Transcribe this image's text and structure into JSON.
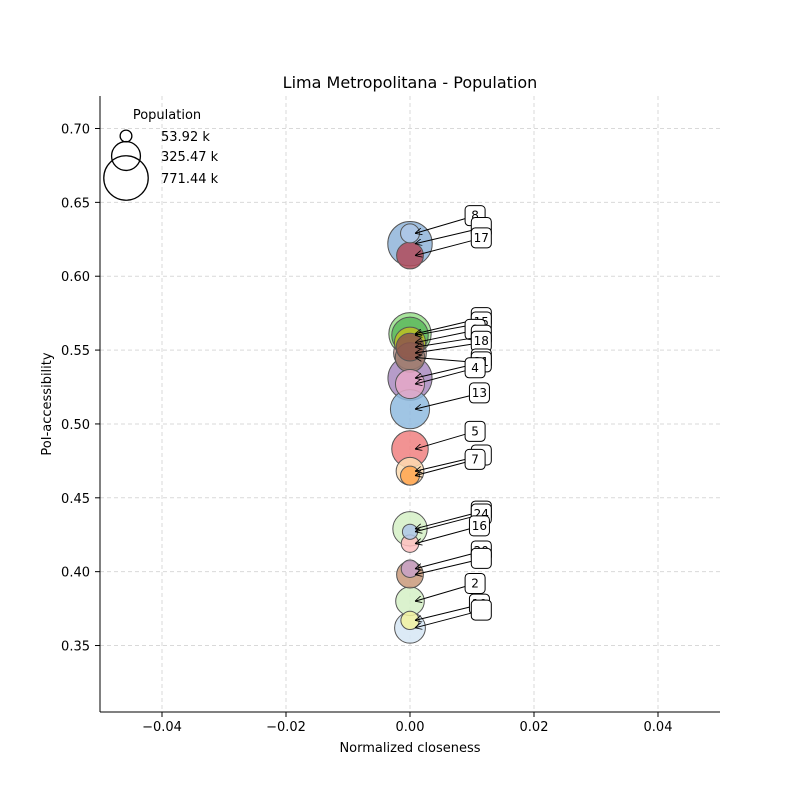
{
  "chart_data": {
    "type": "scatter",
    "title": "Lima Metropolitana - Population",
    "xlabel": "Normalized closeness",
    "ylabel": "PoI-accessibility",
    "xlim": [
      -0.05,
      0.05
    ],
    "ylim": [
      0.305,
      0.722
    ],
    "xticks": [
      -0.04,
      -0.02,
      0.0,
      0.02,
      0.04
    ],
    "xtick_labels": [
      "−0.04",
      "−0.02",
      "0.00",
      "0.02",
      "0.04"
    ],
    "yticks": [
      0.35,
      0.4,
      0.45,
      0.5,
      0.55,
      0.6,
      0.65,
      0.7
    ],
    "ytick_labels": [
      "0.35",
      "0.40",
      "0.45",
      "0.50",
      "0.55",
      "0.60",
      "0.65",
      "0.70"
    ],
    "grid": true,
    "legend": {
      "title": "Population",
      "placement": "top-left",
      "entries": [
        {
          "label": "53.92 k",
          "value": 53.92
        },
        {
          "label": "325.47 k",
          "value": 325.47
        },
        {
          "label": "771.44 k",
          "value": 771.44
        }
      ]
    },
    "points": [
      {
        "x": 0.0,
        "y": 0.629,
        "population": 140,
        "color": "#aec7e8",
        "label": "8",
        "label_x": 0.0105,
        "label_y": 0.641
      },
      {
        "x": 0.0,
        "y": 0.622,
        "population": 771,
        "color": "#8fb4d9",
        "label": "",
        "label_x": 0.0115,
        "label_y": 0.633
      },
      {
        "x": 0.0,
        "y": 0.614,
        "population": 280,
        "color": "#b04a5a",
        "label": "17",
        "label_x": 0.0115,
        "label_y": 0.626
      },
      {
        "x": 0.0,
        "y": 0.561,
        "population": 700,
        "color": "#98df8a",
        "label": "",
        "label_x": 0.0115,
        "label_y": 0.572
      },
      {
        "x": 0.0,
        "y": 0.56,
        "population": 520,
        "color": "#5cb85c",
        "label": "15",
        "label_x": 0.0115,
        "label_y": 0.569
      },
      {
        "x": 0.0,
        "y": 0.555,
        "population": 380,
        "color": "#bcbd22",
        "label": "9",
        "label_x": 0.0105,
        "label_y": 0.564
      },
      {
        "x": 0.0,
        "y": 0.552,
        "population": 300,
        "color": "#8c564b",
        "label": "",
        "label_x": 0.0115,
        "label_y": 0.56
      },
      {
        "x": 0.0,
        "y": 0.548,
        "population": 420,
        "color": "#c49c94",
        "label": "18",
        "label_x": 0.0115,
        "label_y": 0.556
      },
      {
        "x": 0.0,
        "y": 0.545,
        "population": 340,
        "color": "#9b7a6e",
        "label": "",
        "label_x": 0.0115,
        "label_y": 0.544
      },
      {
        "x": 0.0,
        "y": 0.531,
        "population": 760,
        "color": "#a98bbf",
        "label": "21",
        "label_x": 0.0115,
        "label_y": 0.542
      },
      {
        "x": 0.0,
        "y": 0.527,
        "population": 330,
        "color": "#e6a8c8",
        "label": "4",
        "label_x": 0.0105,
        "label_y": 0.538
      },
      {
        "x": 0.0,
        "y": 0.51,
        "population": 600,
        "color": "#8fbbdf",
        "label": "13",
        "label_x": 0.0112,
        "label_y": 0.521
      },
      {
        "x": 0.0,
        "y": 0.483,
        "population": 520,
        "color": "#f08080",
        "label": "5",
        "label_x": 0.0105,
        "label_y": 0.495
      },
      {
        "x": 0.0,
        "y": 0.468,
        "population": 300,
        "color": "#fddbb0",
        "label": "",
        "label_x": 0.0115,
        "label_y": 0.479
      },
      {
        "x": 0.0,
        "y": 0.465,
        "population": 140,
        "color": "#ffa54f",
        "label": "7",
        "label_x": 0.0105,
        "label_y": 0.476
      },
      {
        "x": 0.0,
        "y": 0.429,
        "population": 460,
        "color": "#d5f0c5",
        "label": "",
        "label_x": 0.0115,
        "label_y": 0.441
      },
      {
        "x": 0.0,
        "y": 0.427,
        "population": 90,
        "color": "#aec7e8",
        "label": "24",
        "label_x": 0.0115,
        "label_y": 0.439
      },
      {
        "x": 0.0,
        "y": 0.419,
        "population": 120,
        "color": "#ffc0c0",
        "label": "16",
        "label_x": 0.0112,
        "label_y": 0.431
      },
      {
        "x": 0.0,
        "y": 0.402,
        "population": 120,
        "color": "#c8a2c8",
        "label": "20",
        "label_x": 0.0115,
        "label_y": 0.414
      },
      {
        "x": 0.0,
        "y": 0.398,
        "population": 280,
        "color": "#c9997a",
        "label": "",
        "label_x": 0.0115,
        "label_y": 0.409
      },
      {
        "x": 0.0,
        "y": 0.38,
        "population": 320,
        "color": "#d5f0c5",
        "label": "2",
        "label_x": 0.0105,
        "label_y": 0.392
      },
      {
        "x": 0.0,
        "y": 0.367,
        "population": 130,
        "color": "#f2f2a0",
        "label": "10",
        "label_x": 0.0112,
        "label_y": 0.378
      },
      {
        "x": 0.0,
        "y": 0.362,
        "population": 370,
        "color": "#d6e6f5",
        "label": "",
        "label_x": 0.0115,
        "label_y": 0.374
      }
    ]
  }
}
